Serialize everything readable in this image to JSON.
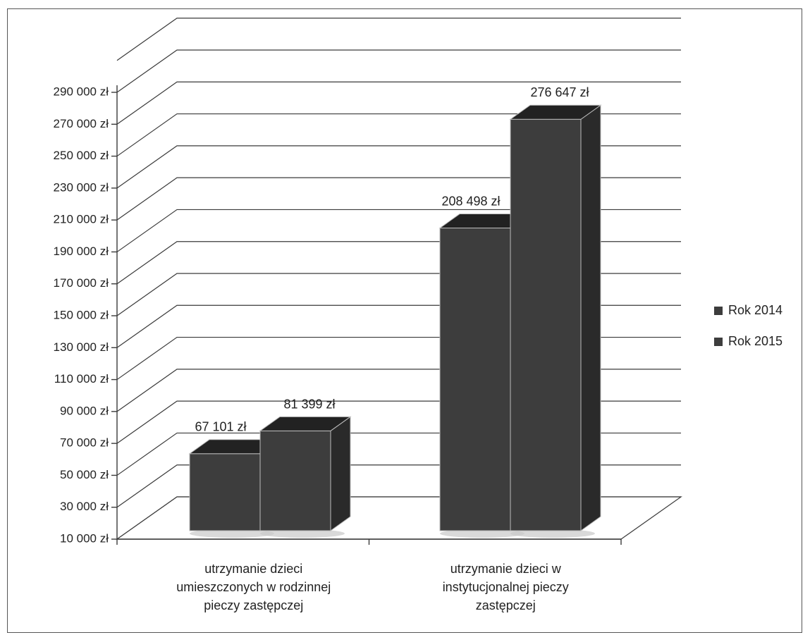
{
  "chart_data": {
    "type": "bar",
    "categories": [
      [
        "utrzymanie dzieci",
        "umieszczonych w rodzinnej",
        "pieczy zastępczej"
      ],
      [
        "utrzymanie dzieci w",
        "instytucjonalnej pieczy",
        "zastępczej"
      ]
    ],
    "series": [
      {
        "name": "Rok 2014",
        "values": [
          67101,
          208498
        ],
        "labels": [
          "67 101 zł",
          "208 498 zł"
        ]
      },
      {
        "name": "Rok 2015",
        "values": [
          81399,
          276647
        ],
        "labels": [
          "81 399 zł",
          "276 647 zł"
        ]
      }
    ],
    "yticks": [
      "10 000 zł",
      "30 000 zł",
      "50 000 zł",
      "70 000 zł",
      "90 000 zł",
      "110 000 zł",
      "130 000 zł",
      "150 000 zł",
      "170 000 zł",
      "190 000 zł",
      "210 000 zł",
      "230 000 zł",
      "250 000 zł",
      "270 000 zł",
      "290 000 zł"
    ],
    "ytick_values": [
      10000,
      30000,
      50000,
      70000,
      90000,
      110000,
      130000,
      150000,
      170000,
      190000,
      210000,
      230000,
      250000,
      270000,
      290000
    ],
    "ylim": [
      10000,
      290000
    ],
    "grid": true,
    "legend": "right",
    "bar_color": "#3d3d3d"
  }
}
